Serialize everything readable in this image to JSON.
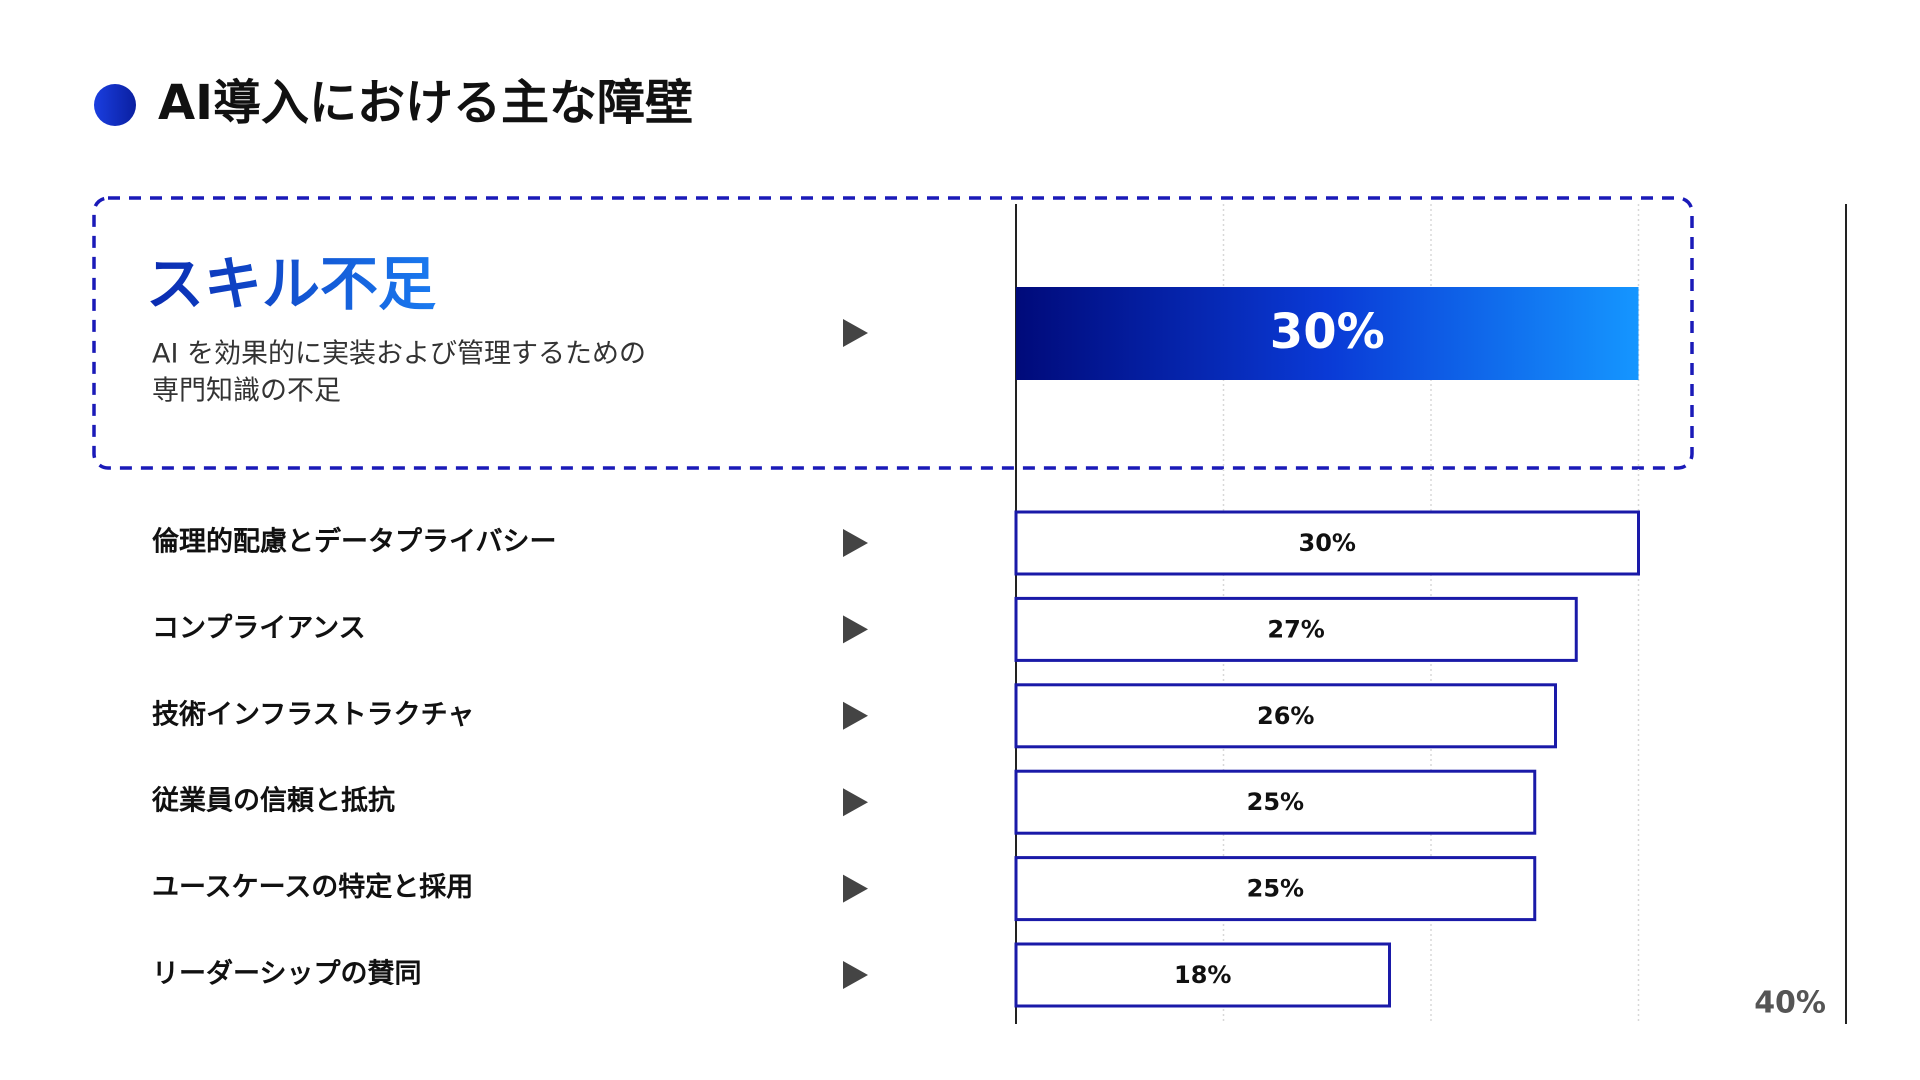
{
  "chart_data": {
    "type": "bar",
    "orientation": "horizontal",
    "title": "AI導入における主な障壁",
    "categories": [
      "スキル不足",
      "倫理的配慮とデータプライバシー",
      "コンプライアンス",
      "技術インフラストラクチャ",
      "従業員の信頼と抵抗",
      "ユースケースの特定と採用",
      "リーダーシップの賛同"
    ],
    "values": [
      30,
      30,
      27,
      26,
      25,
      25,
      18
    ],
    "value_labels": [
      "30%",
      "30%",
      "27%",
      "26%",
      "25%",
      "25%",
      "18%"
    ],
    "highlight": 0,
    "highlight_description": [
      "AI を効果的に実装および管理するための",
      "専門知識の不足"
    ],
    "color": "#1a1aa8",
    "xlim": [
      0,
      40
    ],
    "xticks": [
      {
        "value": 40,
        "label": "40%"
      }
    ],
    "xgrid": [
      10,
      20,
      30
    ]
  }
}
